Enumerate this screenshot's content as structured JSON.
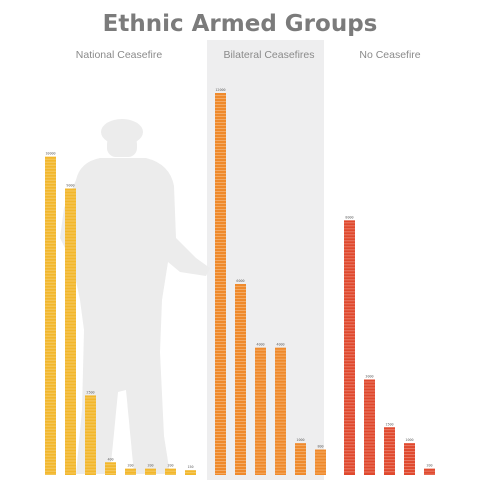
{
  "chart_data": {
    "type": "bar",
    "title": "Ethnic Armed Groups",
    "groups": [
      {
        "name": "National Ceasefire",
        "color": "#f2b72c",
        "values": [
          10000,
          9000,
          2500,
          400,
          200,
          200,
          200,
          150
        ],
        "labels": [
          "10000",
          "9000",
          "2500",
          "400",
          "200",
          "200",
          "200",
          "150"
        ]
      },
      {
        "name": "Bilateral Ceasefires",
        "color": "#ef8a2c",
        "values": [
          12000,
          6000,
          4000,
          4000,
          1000,
          800
        ],
        "labels": [
          "12000",
          "6000",
          "4000",
          "4000",
          "1000",
          "800"
        ]
      },
      {
        "name": "No Ceasefire",
        "color": "#e0492e",
        "values": [
          8000,
          3000,
          1500,
          1000,
          200
        ],
        "labels": [
          "8000",
          "3000",
          "1500",
          "1000",
          "200"
        ]
      }
    ],
    "highlight_group": "Bilateral Ceasefires",
    "colors": {
      "title": "#7b7b7b",
      "group_label": "#8a8a8a",
      "highlight_band": "#eeeeef",
      "silhouette": "#ececec"
    }
  }
}
